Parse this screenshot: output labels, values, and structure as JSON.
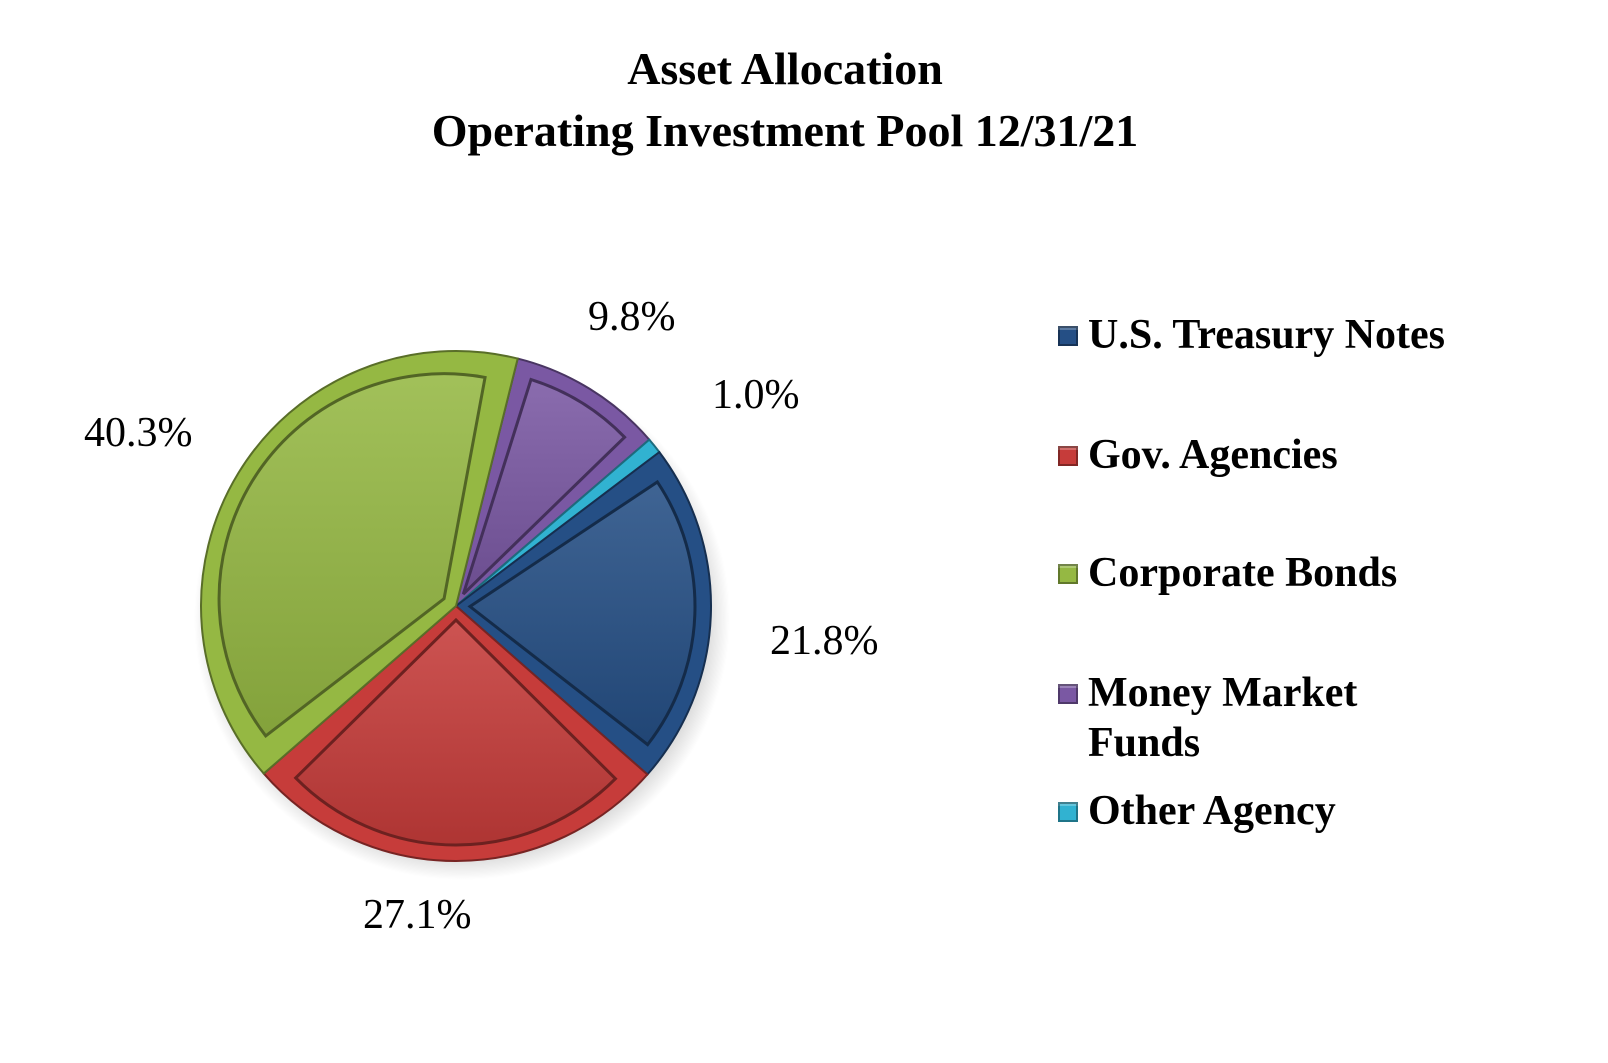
{
  "title": {
    "line1": "Asset Allocation",
    "line2": "Operating Investment Pool  12/31/21"
  },
  "legend": [
    {
      "label": "U.S. Treasury Notes",
      "color": "#254f85"
    },
    {
      "label": "Gov. Agencies",
      "color": "#c63c3a"
    },
    {
      "label": "Corporate Bonds",
      "color": "#95b843"
    },
    {
      "label": "Money Market",
      "label2": "Funds",
      "color": "#7a58a3"
    },
    {
      "label": "Other Agency",
      "color": "#31b2d1"
    }
  ],
  "labels": {
    "treasury": "21.8%",
    "agencies": "27.1%",
    "corporate": "40.3%",
    "money_market": "9.8%",
    "other": "1.0%"
  },
  "chart_data": {
    "type": "pie",
    "title": "Asset Allocation Operating Investment Pool 12/31/21",
    "categories": [
      "U.S. Treasury Notes",
      "Gov. Agencies",
      "Corporate Bonds",
      "Money Market Funds",
      "Other Agency"
    ],
    "values": [
      21.8,
      27.1,
      40.3,
      9.8,
      1.0
    ],
    "unit": "%",
    "colors": [
      "#254f85",
      "#c63c3a",
      "#95b843",
      "#7a58a3",
      "#31b2d1"
    ],
    "legend_position": "right",
    "data_labels": true
  }
}
